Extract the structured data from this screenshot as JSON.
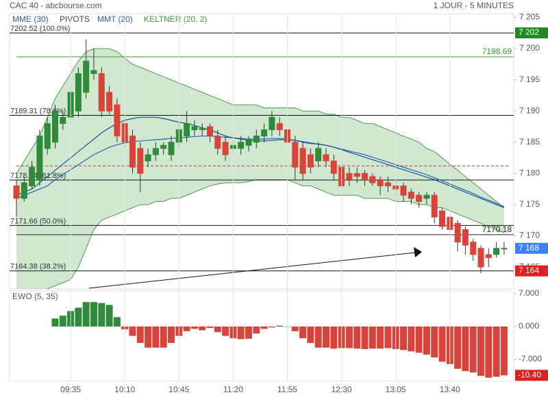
{
  "chart_data": {
    "type": "candlestick",
    "title": "CAC 40 - abcbourse.com",
    "subtitle": "1 JOUR - 5 MINUTES",
    "legend": [
      {
        "name": "MME (30)",
        "color": "#2b5fb4"
      },
      {
        "name": "PIVOTS",
        "color": "#444444"
      },
      {
        "name": "MMT (20)",
        "color": "#2b5fb4"
      },
      {
        "name": "KELTNER (20, 2)",
        "color": "#3d9a3d"
      }
    ],
    "categories": [
      null,
      null,
      null,
      null,
      null,
      null,
      null,
      "09:35",
      null,
      null,
      null,
      null,
      null,
      null,
      "10:10",
      null,
      null,
      null,
      null,
      null,
      null,
      "10:45",
      null,
      null,
      null,
      null,
      null,
      null,
      "11:20",
      null,
      null,
      null,
      null,
      null,
      null,
      "11:55",
      null,
      null,
      null,
      null,
      null,
      null,
      "12:30",
      null,
      null,
      null,
      null,
      null,
      null,
      "13:05",
      null,
      null,
      null,
      null,
      null,
      null,
      "13:40",
      null,
      null,
      null,
      null,
      null,
      null,
      null
    ],
    "open": [
      7178,
      7176,
      7178,
      7179,
      7184,
      7185,
      7188,
      7189,
      7190,
      7193,
      7196,
      7196,
      7193,
      7191,
      7188,
      7186,
      7184,
      7182,
      7183,
      7184,
      7183,
      7185,
      7186,
      7187,
      7187,
      7187.5,
      7186,
      7185,
      7184,
      7184,
      7184.5,
      7185,
      7186,
      7187,
      7188,
      7187,
      7185,
      7184,
      7183,
      7182,
      7183,
      7182,
      7181,
      7180,
      7180,
      7180,
      7179.5,
      7179,
      7178.5,
      7178,
      7178,
      7177,
      7176.5,
      7176,
      7176.5,
      7174,
      7173,
      7172,
      7171,
      7169,
      7168,
      7167,
      7167,
      7168
    ],
    "high": [
      7179,
      7179.5,
      7182,
      7187,
      7189,
      7191,
      7190,
      7194,
      7197,
      7201.5,
      7200,
      7197,
      7194,
      7192,
      7189,
      7187,
      7185,
      7184,
      7185,
      7185,
      7186,
      7188,
      7190,
      7188.5,
      7188,
      7188,
      7187,
      7186,
      7185.5,
      7186,
      7186,
      7187,
      7188,
      7190,
      7189,
      7188,
      7186,
      7185,
      7184,
      7185,
      7184,
      7183,
      7182,
      7181,
      7181,
      7180.5,
      7180,
      7179.5,
      7179.5,
      7179,
      7178.5,
      7177.5,
      7177,
      7177,
      7177,
      7174.5,
      7173.5,
      7172.5,
      7171.5,
      7169.5,
      7168.5,
      7168,
      7169,
      7169
    ],
    "low": [
      7173,
      7175.5,
      7177.5,
      7178,
      7183,
      7184,
      7187,
      7188,
      7189,
      7192,
      7195,
      7189,
      7189.5,
      7185,
      7184,
      7180,
      7177,
      7181,
      7182,
      7183,
      7182,
      7184,
      7185,
      7186,
      7186,
      7185,
      7183,
      7182,
      7183,
      7183,
      7183.5,
      7184,
      7185,
      7186,
      7186,
      7184,
      7179,
      7179,
      7180,
      7181,
      7181,
      7179,
      7177.5,
      7178,
      7178.5,
      7178,
      7178,
      7176.5,
      7177,
      7176.5,
      7175.5,
      7175,
      7174.5,
      7175,
      7172,
      7171,
      7170.5,
      7167.5,
      7167,
      7166,
      7164,
      7165,
      7166.5,
      7167
    ],
    "close": [
      7176,
      7178.5,
      7181,
      7186,
      7188,
      7190,
      7189,
      7193,
      7196,
      7198,
      7196.5,
      7190,
      7190,
      7186,
      7185,
      7181,
      7180,
      7183,
      7184,
      7184.5,
      7185,
      7187,
      7188,
      7187.5,
      7187.2,
      7186,
      7184,
      7183,
      7184.5,
      7185,
      7185.5,
      7186,
      7187,
      7189,
      7187,
      7185,
      7181,
      7180,
      7181,
      7184,
      7182,
      7180,
      7178,
      7179,
      7179.5,
      7179,
      7178.5,
      7178,
      7178,
      7177.5,
      7176.5,
      7176,
      7175.5,
      7176.5,
      7173,
      7171.5,
      7171,
      7169,
      7168.5,
      7167,
      7165,
      7166.5,
      7168,
      7168
    ],
    "up_color": "#2e8b3a",
    "down_color": "#d9443a",
    "series": [
      {
        "name": "MME (30)",
        "color": "#2b5fb4",
        "values": [
          7176,
          7176.5,
          7177,
          7177.5,
          7178,
          7179,
          7179.8,
          7180.6,
          7181.4,
          7182.2,
          7183,
          7183.6,
          7184.2,
          7184.6,
          7184.9,
          7185.1,
          7185.2,
          7185.3,
          7185.4,
          7185.5,
          7185.6,
          7185.7,
          7185.8,
          7185.9,
          7186,
          7186,
          7185.9,
          7185.8,
          7185.7,
          7185.6,
          7185.5,
          7185.5,
          7185.5,
          7185.6,
          7185.6,
          7185.5,
          7185.3,
          7185.1,
          7184.9,
          7184.7,
          7184.5,
          7184.2,
          7183.9,
          7183.6,
          7183.3,
          7183,
          7182.6,
          7182.2,
          7181.8,
          7181.4,
          7181,
          7180.6,
          7180.2,
          7179.8,
          7179.3,
          7178.8,
          7178.3,
          7177.8,
          7177.3,
          7176.8,
          7176.2,
          7175.7,
          7175.2,
          7174.7
        ]
      },
      {
        "name": "MMT (20)",
        "color": "#1b4f8f",
        "values": [
          7176.5,
          7177,
          7177.5,
          7178.5,
          7179.5,
          7180.5,
          7181.5,
          7182.5,
          7183.5,
          7184.5,
          7185.5,
          7186.5,
          7187.3,
          7188,
          7188.5,
          7188.8,
          7189,
          7189,
          7189,
          7188.8,
          7188.5,
          7188.2,
          7188,
          7187.7,
          7187.3,
          7187,
          7186.5,
          7186,
          7185.7,
          7185.5,
          7185.3,
          7185.2,
          7185.2,
          7185.3,
          7185.4,
          7185.4,
          7185.3,
          7185,
          7184.8,
          7184.7,
          7184.5,
          7184.2,
          7183.8,
          7183.4,
          7183,
          7182.6,
          7182.2,
          7181.8,
          7181.4,
          7181,
          7180.6,
          7180.2,
          7179.8,
          7179.4,
          7179,
          7178.5,
          7178,
          7177.5,
          7177,
          7176.5,
          7176,
          7175.5,
          7175,
          7174.5
        ]
      }
    ],
    "keltner": {
      "color": "#4a9a4a",
      "fill": "rgba(110,185,110,0.33)",
      "upper": [
        7180,
        7182,
        7184,
        7186,
        7189,
        7192,
        7194,
        7196,
        7198,
        7199.5,
        7200,
        7200,
        7200,
        7199.5,
        7198.5,
        7197.5,
        7197,
        7196.5,
        7196,
        7195.5,
        7195,
        7194.5,
        7194,
        7193.5,
        7193,
        7192.5,
        7192,
        7191.5,
        7191,
        7191,
        7191,
        7191,
        7190.5,
        7190.5,
        7190.5,
        7190.5,
        7190.5,
        7190,
        7190,
        7190,
        7189.5,
        7189.5,
        7189,
        7189,
        7188.5,
        7188,
        7188,
        7187.5,
        7187,
        7186.5,
        7186,
        7185.5,
        7185,
        7184,
        7183.5,
        7182.5,
        7181.5,
        7180.5,
        7179.5,
        7178.5,
        7177.5,
        7176.5,
        7175.5,
        7174.5
      ],
      "lower": [
        7160,
        7160,
        7160.5,
        7161,
        7161.5,
        7162,
        7162.5,
        7163,
        7165,
        7168,
        7171,
        7172.5,
        7173,
        7173.5,
        7174,
        7174.5,
        7175,
        7175,
        7175.5,
        7175.5,
        7176,
        7176,
        7176.5,
        7177,
        7177.5,
        7178,
        7178.3,
        7178.5,
        7178.5,
        7178.5,
        7178.7,
        7179,
        7179,
        7179,
        7179,
        7179,
        7178.5,
        7178,
        7178,
        7177.5,
        7177,
        7176.5,
        7176.5,
        7176.5,
        7176.5,
        7176,
        7176,
        7176,
        7176,
        7175.5,
        7175.5,
        7175.5,
        7175,
        7175,
        7174.5,
        7174.5,
        7174,
        7173.5,
        7173,
        7172.5,
        7172,
        7171.5,
        7171,
        7170.5
      ]
    },
    "fib_levels": [
      {
        "value": 7202.52,
        "label": "7202.52  (100.0%)"
      },
      {
        "value": 7189.31,
        "label": "7189.31  (78.6%)"
      },
      {
        "value": 7178.94,
        "label": "7178.94  (61.8%)"
      },
      {
        "value": 7171.66,
        "label": "7171.66  (50.0%)"
      },
      {
        "value": 7164.38,
        "label": "7164.38  (38.2%)"
      }
    ],
    "pivots": [
      {
        "value": 7198.69,
        "label": "7198.69",
        "color": "#3d9a3d"
      },
      {
        "value": 7170.18,
        "label": "7170.18",
        "color": "#222222"
      }
    ],
    "dashed_level": {
      "value": 7181.2,
      "color": "#d03030"
    },
    "price_badges": [
      {
        "value": 7202.52,
        "label": "7 202",
        "color": "#1f8a1f"
      },
      {
        "value": 7168,
        "label": "7 168",
        "color": "#3b82f6"
      },
      {
        "value": 7164.38,
        "label": "7 164",
        "color": "#e02020"
      }
    ],
    "ylim": [
      7161.5,
      7205.6
    ],
    "yticks": [
      {
        "value": 7205,
        "label": "7 205"
      },
      {
        "value": 7200,
        "label": "7 200"
      },
      {
        "value": 7195,
        "label": "7 195"
      },
      {
        "value": 7190,
        "label": "7 190"
      },
      {
        "value": 7185,
        "label": "7 185"
      },
      {
        "value": 7180,
        "label": "7 180"
      },
      {
        "value": 7175,
        "label": "7 175"
      },
      {
        "value": 7170,
        "label": "7 170"
      },
      {
        "value": 7165,
        "label": "7 165"
      }
    ],
    "ewo": {
      "title": "EWO (5, 35)",
      "positive_color": "#2e8b3a",
      "negative_color": "#d9443a",
      "values": [
        null,
        null,
        null,
        null,
        null,
        1.7,
        2.3,
        3.3,
        4,
        5.2,
        5.2,
        5,
        4.6,
        2,
        -0.6,
        -2,
        -3.5,
        -4.5,
        -4.5,
        -4.5,
        -3.5,
        -2,
        -1,
        -0.5,
        -0.8,
        -0.3,
        -1.2,
        -2,
        -2.5,
        -2.7,
        -2.6,
        -1.5,
        -0.5,
        -0.2,
        0.2,
        0,
        -1,
        -2.5,
        -3.5,
        -4.5,
        -4.5,
        -4.7,
        -4.6,
        -4.6,
        -4.7,
        -4.8,
        -4.7,
        -4.7,
        -4.6,
        -4.8,
        -5,
        -5.3,
        -5.6,
        -6,
        -6.6,
        -7.5,
        -8,
        -9,
        -9.5,
        -9.8,
        -10.5,
        -10.9,
        -10.7,
        -10.4
      ],
      "ylim": [
        -11.66,
        7.58
      ],
      "yticks": [
        {
          "value": 7,
          "label": "7.000"
        },
        {
          "value": 0,
          "label": "0.000"
        },
        {
          "value": -7,
          "label": "-7.000"
        }
      ],
      "badge": {
        "value": -10.4,
        "label": "-10.40",
        "color": "#e02020"
      }
    }
  }
}
